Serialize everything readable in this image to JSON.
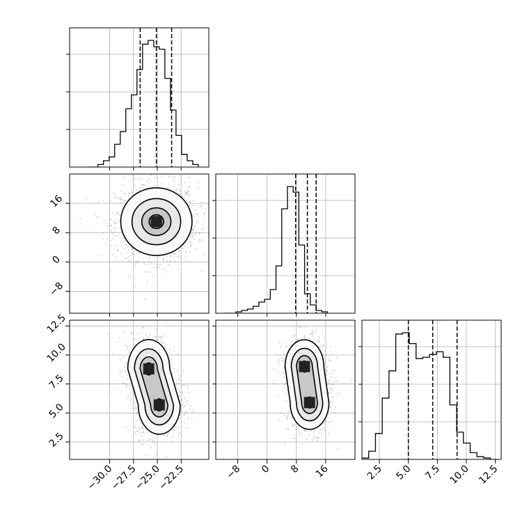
{
  "chart_data": {
    "type": "corner",
    "params": [
      "",
      "",
      ""
    ],
    "ranges": [
      [
        -34.2,
        -19.6
      ],
      [
        -14,
        24
      ],
      [
        1,
        13
      ]
    ],
    "ticks": [
      {
        "values": [
          -30.0,
          -27.5,
          -25.0,
          -22.5
        ],
        "labels": [
          "−30.0",
          "−27.5",
          "−25.0",
          "−22.5"
        ]
      },
      {
        "values": [
          -8,
          0,
          8,
          16
        ],
        "labels": [
          "−8",
          "0",
          "8",
          "16"
        ]
      },
      {
        "values": [
          2.5,
          5.0,
          7.5,
          10.0,
          12.5
        ],
        "labels": [
          "2.5",
          "5.0",
          "7.5",
          "10.0",
          "12.5"
        ]
      }
    ],
    "quantiles": [
      [
        -26.8,
        -25.1,
        -23.5
      ],
      [
        7.8,
        11.0,
        13.4
      ],
      [
        5.0,
        7.1,
        9.2
      ]
    ],
    "histograms": [
      {
        "bin_edges_start": -32.4,
        "bin_width": 0.585,
        "counts": [
          0,
          0,
          2,
          5,
          8,
          18,
          28,
          46,
          57,
          77,
          97,
          100,
          95,
          93,
          70,
          45,
          25,
          10,
          5,
          2
        ]
      },
      {
        "bin_edges_start": -11.6,
        "bin_width": 1.56,
        "counts": [
          0,
          0,
          1,
          2,
          3,
          5,
          8,
          10,
          17,
          34,
          75,
          91,
          87,
          49,
          14,
          6,
          2,
          1
        ]
      },
      {
        "bin_edges_start": 1.0,
        "bin_width": 0.583,
        "counts": [
          1,
          6,
          19,
          45,
          65,
          92,
          93,
          85,
          74,
          75,
          77,
          79,
          75,
          40,
          20,
          12,
          5,
          2,
          1,
          0
        ]
      }
    ],
    "density_centers": {
      "x1_x0": [
        {
          "x": -25.1,
          "y": 11.0
        }
      ],
      "x2_x0": [
        {
          "x": -25.9,
          "y": 8.8
        },
        {
          "x": -24.8,
          "y": 5.7
        }
      ],
      "x2_x1": [
        {
          "x": 10.2,
          "y": 9.0
        },
        {
          "x": 11.6,
          "y": 5.9
        }
      ]
    },
    "grid": true,
    "title": "",
    "xlabel": "",
    "ylabel": ""
  },
  "colors": {
    "line": "#000000",
    "scatter": "#9a9a9a",
    "grid": "#b0b0b0",
    "background": "#ffffff"
  }
}
